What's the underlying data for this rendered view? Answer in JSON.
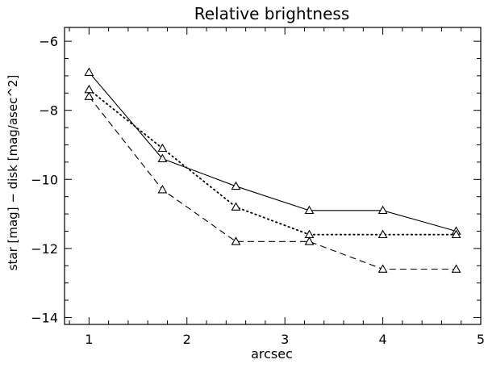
{
  "chart_data": {
    "type": "line",
    "title": "Relative brightness",
    "xlabel": "arcsec",
    "ylabel": "star [mag] − disk [mag/asec^2]",
    "xlim": [
      0.75,
      5.0
    ],
    "ylim": [
      -14.2,
      -5.6
    ],
    "x_ticks": [
      1,
      2,
      3,
      4,
      5
    ],
    "y_ticks": [
      -14,
      -12,
      -10,
      -8,
      -6
    ],
    "grid": false,
    "marker": "open-triangle",
    "series": [
      {
        "style": "solid",
        "x": [
          1.0,
          1.75,
          2.5,
          3.25,
          4.0,
          4.75
        ],
        "y": [
          -6.9,
          -9.4,
          -10.2,
          -10.9,
          -10.9,
          -11.5
        ]
      },
      {
        "style": "dotted",
        "x": [
          1.0,
          1.75,
          2.5,
          3.25,
          4.0,
          4.75
        ],
        "y": [
          -7.4,
          -9.1,
          -10.8,
          -11.6,
          -11.6,
          -11.6
        ]
      },
      {
        "style": "dashed",
        "x": [
          1.0,
          1.75,
          2.5,
          3.25,
          4.0,
          4.75
        ],
        "y": [
          -7.6,
          -10.3,
          -11.8,
          -11.8,
          -12.6,
          -12.6
        ]
      }
    ]
  }
}
